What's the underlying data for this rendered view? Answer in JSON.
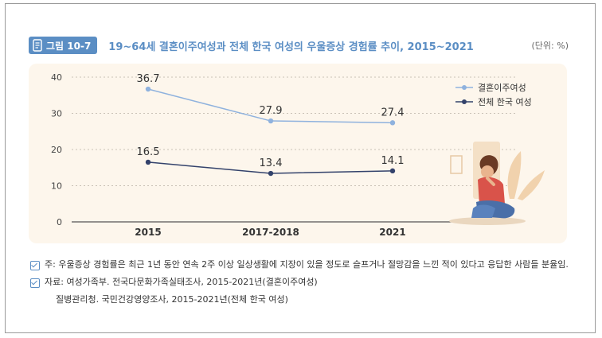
{
  "figure": {
    "badge": "그림 10-7",
    "title": "19~64세 결혼이주여성과 전체 한국 여성의 우울증상 경험률 추이, 2015~2021",
    "unit": "(단위: %)"
  },
  "chart_data": {
    "type": "line",
    "categories": [
      "2015",
      "2017-2018",
      "2021"
    ],
    "series": [
      {
        "name": "결혼이주여성",
        "values": [
          36.7,
          27.9,
          27.4
        ],
        "color": "#8fb2de"
      },
      {
        "name": "전체 한국 여성",
        "values": [
          16.5,
          13.4,
          14.1
        ],
        "color": "#33426b"
      }
    ],
    "ylim": [
      0,
      40
    ],
    "yticks": [
      0,
      10,
      20,
      30,
      40
    ],
    "grid": "horizontal-dotted",
    "legend": "top-right"
  },
  "notes": {
    "note": "주: 우울증상 경험률은 최근 1년 동안 연속 2주 이상 일상생활에 지장이 있을 정도로 슬프거나 절망감을 느낀 적이 있다고 응답한 사람들 분율임.",
    "source_1": "자료: 여성가족부. 전국다문화가족실태조사, 2015-2021년(결혼이주여성)",
    "source_2": "질병관리청. 국민건강영양조사, 2015-2021년(전체 한국 여성)"
  },
  "illustration": {
    "icon": "sad-woman-illustration"
  }
}
